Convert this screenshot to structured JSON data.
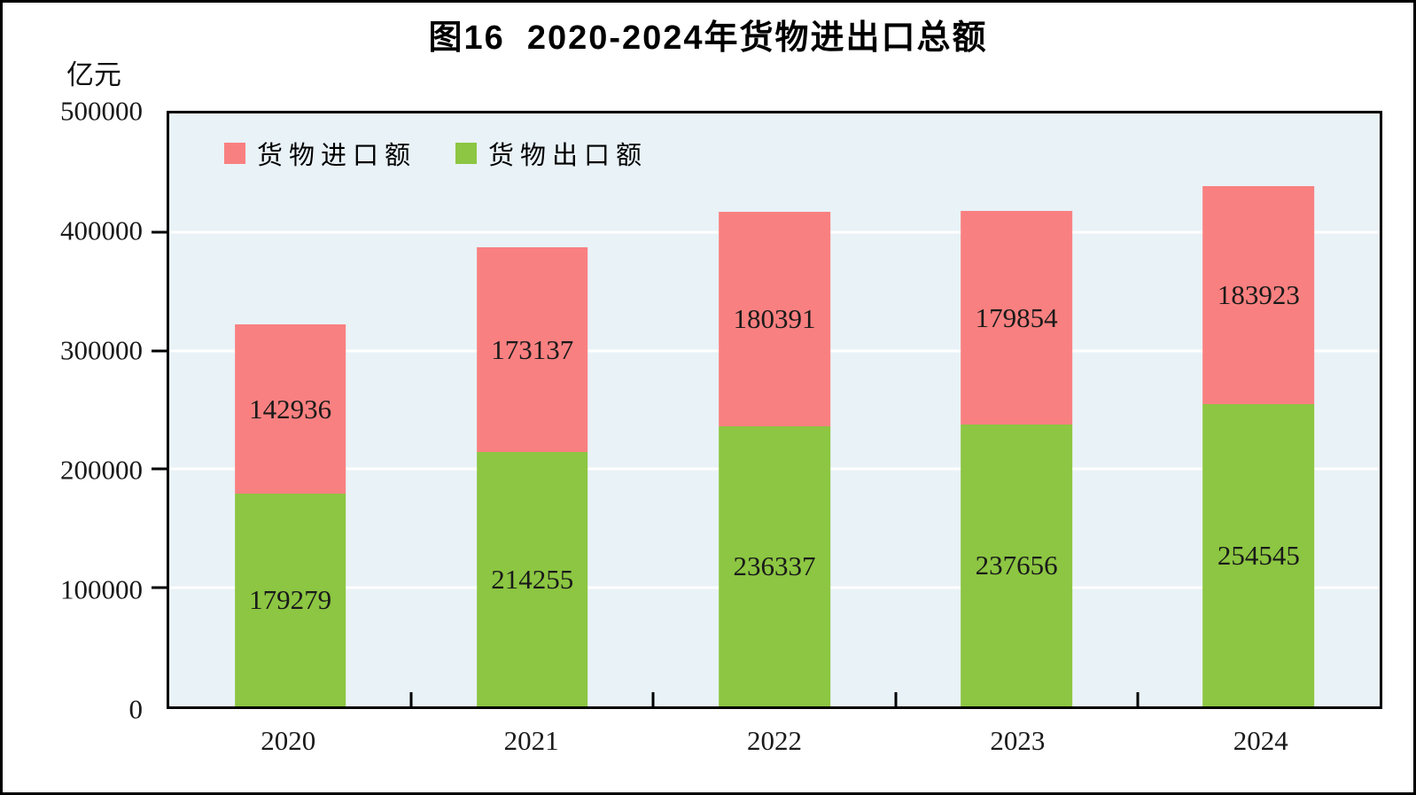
{
  "chart_data": {
    "type": "bar",
    "stacked": true,
    "title": "图16  2020-2024年货物进出口总额",
    "ylabel": "亿元",
    "xlabel": "",
    "categories": [
      "2020",
      "2021",
      "2022",
      "2023",
      "2024"
    ],
    "series": [
      {
        "name": "货物进口额",
        "color": "#F98080",
        "values": [
          142936,
          173137,
          180391,
          179854,
          183923
        ]
      },
      {
        "name": "货物出口额",
        "color": "#8CC642",
        "values": [
          179279,
          214255,
          236337,
          237656,
          254545
        ]
      }
    ],
    "stack_bottom_to_top": [
      "货物出口额",
      "货物进口额"
    ],
    "ylim": [
      0,
      500000
    ],
    "yticks": [
      0,
      100000,
      200000,
      300000,
      400000,
      500000
    ],
    "grid": "horizontal-white-lines",
    "legend_position": "top-left-inside",
    "plot_bg": "#E9F2F7",
    "frame_color": "#000000",
    "bar_label_color": "#1a1a1a"
  }
}
